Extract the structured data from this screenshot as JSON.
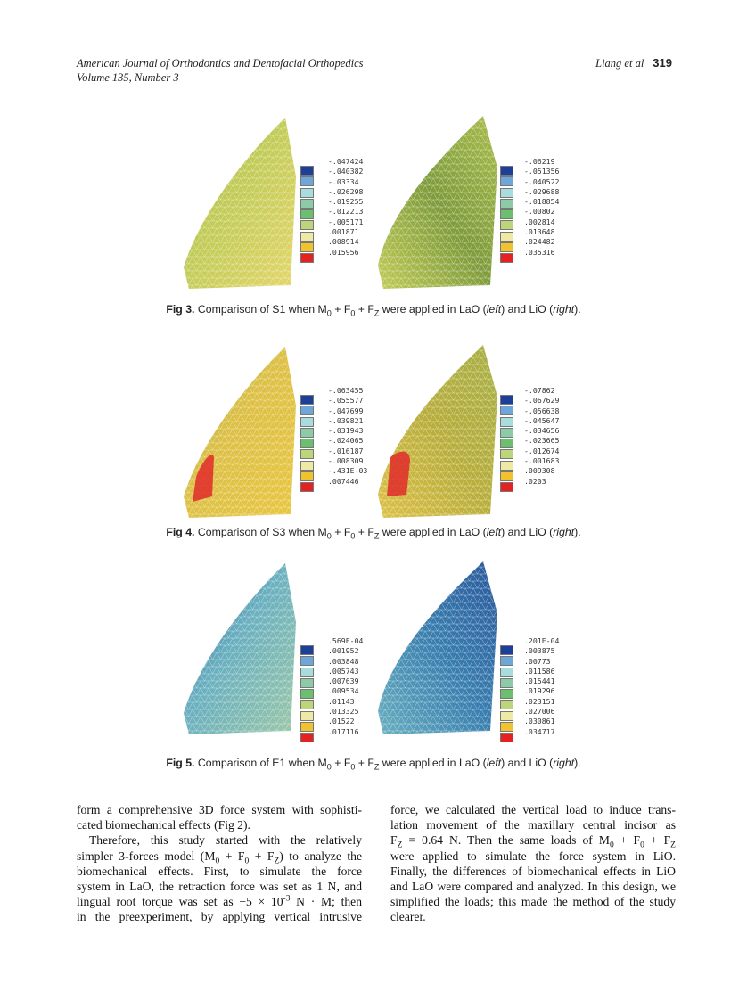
{
  "header": {
    "journal": "American Journal of Orthodontics and Dentofacial Orthopedics",
    "volume": "Volume 135, Number 3",
    "authors": "Liang et al",
    "page": "319"
  },
  "legend_colors": [
    "#1d3f98",
    "#6ea6da",
    "#a9dcdc",
    "#8ccaa8",
    "#6bbf6f",
    "#bcd57a",
    "#efe9a6",
    "#f0c22e",
    "#e42222"
  ],
  "figures": [
    {
      "label": "Fig 3.",
      "caption_pre": "Comparison of S1 when M",
      "sub1": "0",
      "mid1": " + F",
      "sub2": "0",
      "mid2": " + F",
      "sub3": "Z",
      "caption_post1": " were applied in LaO (",
      "left_word": "left",
      "caption_post2": ") and LiO (",
      "right_word": "right",
      "caption_post3": ").",
      "theme": [
        "#7f9c3c",
        "#c2cc58",
        "#e4d66a",
        "#a9bd4c"
      ],
      "left_legend": [
        "-.047424",
        "-.040382",
        "-.03334",
        "-.026298",
        "-.019255",
        "-.012213",
        "-.005171",
        ".001871",
        ".008914",
        ".015956"
      ],
      "right_legend": [
        "-.06219",
        "-.051356",
        "-.040522",
        "-.029688",
        "-.018854",
        "-.00802",
        ".002814",
        ".013648",
        ".024482",
        ".035316"
      ]
    },
    {
      "label": "Fig 4.",
      "caption_pre": "Comparison of S3 when M",
      "sub1": "0",
      "mid1": " + F",
      "sub2": "0",
      "mid2": " + F",
      "sub3": "Z",
      "caption_post1": " were applied in LaO (",
      "left_word": "left",
      "caption_post2": ") and LiO (",
      "right_word": "right",
      "caption_post3": ").",
      "theme": [
        "#b8ae3c",
        "#ddc046",
        "#e8c640",
        "#a8b048"
      ],
      "left_legend": [
        "-.063455",
        "-.055577",
        "-.047699",
        "-.039821",
        "-.031943",
        "-.024065",
        "-.016187",
        "-.008309",
        "-.431E-03",
        ".007446"
      ],
      "right_legend": [
        "-.07862",
        "-.067629",
        "-.056638",
        "-.045647",
        "-.034656",
        "-.023665",
        "-.012674",
        "-.001683",
        ".009308",
        ".0203"
      ]
    },
    {
      "label": "Fig 5.",
      "caption_pre": "Comparison of E1 when M",
      "sub1": "0",
      "mid1": " + F",
      "sub2": "0",
      "mid2": " + F",
      "sub3": "Z",
      "caption_post1": " were applied in LaO (",
      "left_word": "left",
      "caption_post2": ") and LiO (",
      "right_word": "right",
      "caption_post3": ").",
      "theme": [
        "#3a7fb0",
        "#6ab0c0",
        "#9cc8a8",
        "#2b5a9c"
      ],
      "left_legend": [
        ".569E-04",
        ".001952",
        ".003848",
        ".005743",
        ".007639",
        ".009534",
        ".01143",
        ".013325",
        ".01522",
        ".017116"
      ],
      "right_legend": [
        ".201E-04",
        ".003875",
        ".00773",
        ".011586",
        ".015441",
        ".019296",
        ".023151",
        ".027006",
        ".030861",
        ".034717"
      ]
    }
  ],
  "body": {
    "left_column": [
      {
        "cls": "",
        "segs": [
          {
            "t": "form a comprehensive 3D force system with sophisti-"
          }
        ]
      },
      {
        "cls": "last",
        "segs": [
          {
            "t": "cated biomechanical effects (Fig 2)."
          }
        ]
      },
      {
        "cls": "indent",
        "segs": [
          {
            "t": "Therefore, this study started with the relatively"
          }
        ]
      },
      {
        "cls": "",
        "segs": [
          {
            "t": "simpler 3-forces model (M"
          },
          {
            "sub": "0"
          },
          {
            "t": " + F"
          },
          {
            "sub": "0"
          },
          {
            "t": " + F"
          },
          {
            "sub": "Z"
          },
          {
            "t": ") to analyze the"
          }
        ]
      },
      {
        "cls": "",
        "segs": [
          {
            "t": "biomechanical effects. First, to simulate the force"
          }
        ]
      },
      {
        "cls": "",
        "segs": [
          {
            "t": "system in LaO, the retraction force was set as 1 N, and"
          }
        ]
      },
      {
        "cls": "",
        "segs": [
          {
            "t": "lingual root torque was set as −5 × 10"
          },
          {
            "sup": "-3"
          },
          {
            "t": " N · M; then"
          }
        ]
      },
      {
        "cls": "",
        "segs": [
          {
            "t": "in the preexperiment, by applying vertical intrusive"
          }
        ]
      }
    ],
    "right_column": [
      {
        "cls": "",
        "segs": [
          {
            "t": "force, we calculated the vertical load to induce trans-"
          }
        ]
      },
      {
        "cls": "",
        "segs": [
          {
            "t": "lation movement of the maxillary central incisor as"
          }
        ]
      },
      {
        "cls": "",
        "segs": [
          {
            "t": "F"
          },
          {
            "sub": "Z"
          },
          {
            "t": " = 0.64 N. Then the same loads of M"
          },
          {
            "sub": "0"
          },
          {
            "t": " + F"
          },
          {
            "sub": "0"
          },
          {
            "t": " + F"
          },
          {
            "sub": "Z"
          }
        ]
      },
      {
        "cls": "",
        "segs": [
          {
            "t": "were applied to simulate the force system in LiO."
          }
        ]
      },
      {
        "cls": "",
        "segs": [
          {
            "t": "Finally, the differences of biomechanical effects in LiO"
          }
        ]
      },
      {
        "cls": "",
        "segs": [
          {
            "t": "and LaO were compared and analyzed. In this design, we"
          }
        ]
      },
      {
        "cls": "",
        "segs": [
          {
            "t": "simplified the loads; this made the method of the study"
          }
        ]
      },
      {
        "cls": "last",
        "segs": [
          {
            "t": "clearer."
          }
        ]
      }
    ]
  }
}
